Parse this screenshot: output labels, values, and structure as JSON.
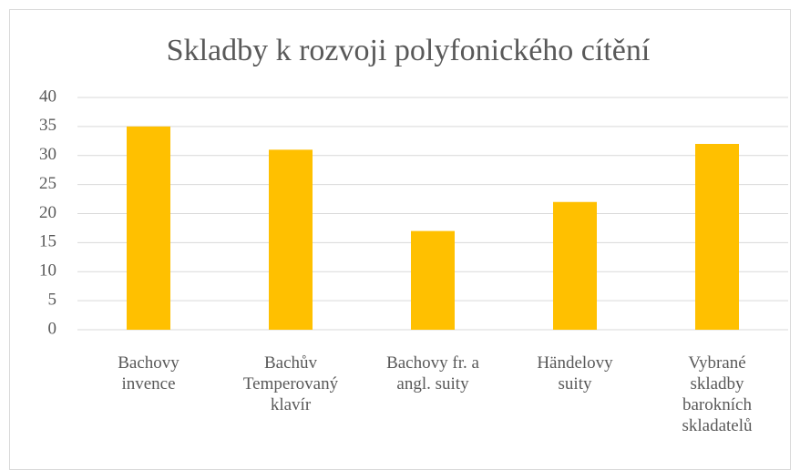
{
  "chart_data": {
    "type": "bar",
    "title": "Skladby k rozvoji polyfonického cítění",
    "categories": [
      "Bachovy\ninvence",
      "Bachův\nTemperovaný\nklavír",
      "Bachovy fr.  a\nangl. suity",
      "Händelovy\nsuity",
      "Vybrané\nskladby\nbarokních\nskladatelů"
    ],
    "values": [
      35,
      31,
      17,
      22,
      32
    ],
    "color": "#ffc000",
    "ylim": [
      0,
      40
    ],
    "yticks": [
      0,
      5,
      10,
      15,
      20,
      25,
      30,
      35,
      40
    ],
    "grid": true
  }
}
